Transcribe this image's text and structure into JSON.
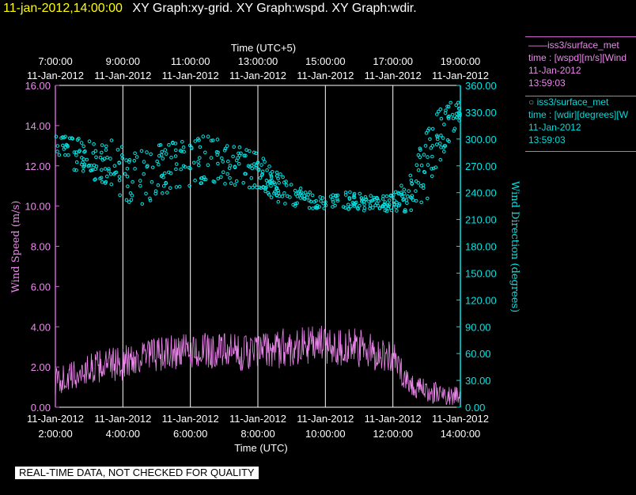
{
  "header": {
    "timestamp": "11-jan-2012,14:00:00",
    "graphs": "XY Graph:xy-grid.  XY Graph:wspd.  XY Graph:wdir."
  },
  "legend": [
    {
      "marker": "——",
      "name": "iss3/surface_met",
      "field": "time : [wspd][m/s][Wind",
      "date": "11-Jan-2012",
      "time": "13:59:03"
    },
    {
      "marker": "○",
      "name": "iss3/surface_met",
      "field": "time : [wdir][degrees][W",
      "date": "11-Jan-2012",
      "time": "13:59:03"
    }
  ],
  "quality_banner": "REAL-TIME DATA, NOT CHECKED FOR QUALITY",
  "colors": {
    "wspd": "#ee88ee",
    "wdir": "#00e5e5",
    "axis_left": "#cc66cc",
    "grid": "#ffffff",
    "header_ts": "#ffff00"
  },
  "chart_data": {
    "type": "line",
    "title": "",
    "top_axis_label": "Time (UTC+5)",
    "bottom_axis_label": "Time (UTC)",
    "ylabel": "Wind Speed (m/s)",
    "y2label": "Wind Direction (degrees)",
    "xlim_hours_utc": [
      2.0,
      14.0
    ],
    "ylim": [
      0,
      16
    ],
    "y2lim": [
      0,
      360
    ],
    "bottom_ticks": [
      {
        "date": "11-Jan-2012",
        "time": "2:00:00",
        "hour": 2
      },
      {
        "date": "11-Jan-2012",
        "time": "4:00:00",
        "hour": 4
      },
      {
        "date": "11-Jan-2012",
        "time": "6:00:00",
        "hour": 6
      },
      {
        "date": "11-Jan-2012",
        "time": "8:00:00",
        "hour": 8
      },
      {
        "date": "11-Jan-2012",
        "time": "10:00:00",
        "hour": 10
      },
      {
        "date": "11-Jan-2012",
        "time": "12:00:00",
        "hour": 12
      },
      {
        "date": "11-Jan-2012",
        "time": "14:00:00",
        "hour": 14
      }
    ],
    "top_ticks": [
      {
        "time": "7:00:00",
        "date": "11-Jan-2012",
        "hour": 2
      },
      {
        "time": "9:00:00",
        "date": "11-Jan-2012",
        "hour": 4
      },
      {
        "time": "11:00:00",
        "date": "11-Jan-2012",
        "hour": 6
      },
      {
        "time": "13:00:00",
        "date": "11-Jan-2012",
        "hour": 8
      },
      {
        "time": "15:00:00",
        "date": "11-Jan-2012",
        "hour": 10
      },
      {
        "time": "17:00:00",
        "date": "11-Jan-2012",
        "hour": 12
      },
      {
        "time": "19:00:00",
        "date": "11-Jan-2012",
        "hour": 14
      }
    ],
    "y_ticks": [
      "0.00",
      "2.00",
      "4.00",
      "6.00",
      "8.00",
      "10.00",
      "12.00",
      "14.00",
      "16.00"
    ],
    "y_tick_values": [
      0,
      2,
      4,
      6,
      8,
      10,
      12,
      14,
      16
    ],
    "y2_ticks": [
      "0.00",
      "30.00",
      "60.00",
      "90.00",
      "120.00",
      "150.00",
      "180.00",
      "210.00",
      "240.00",
      "270.00",
      "300.00",
      "330.00",
      "360.00"
    ],
    "y2_tick_values": [
      0,
      30,
      60,
      90,
      120,
      150,
      180,
      210,
      240,
      270,
      300,
      330,
      360
    ],
    "series": [
      {
        "name": "wspd (m/s)",
        "style": "line",
        "axis": "left",
        "x": [
          2.0,
          2.5,
          3.0,
          3.5,
          4.0,
          4.5,
          5.0,
          5.5,
          6.0,
          6.5,
          7.0,
          7.5,
          8.0,
          8.5,
          9.0,
          9.5,
          10.0,
          10.5,
          11.0,
          11.5,
          12.0,
          12.25,
          12.5,
          12.75,
          13.0,
          13.25,
          13.5,
          13.75,
          14.0
        ],
        "values": [
          1.3,
          1.5,
          1.9,
          2.1,
          2.2,
          2.5,
          2.6,
          2.7,
          2.8,
          2.8,
          2.8,
          2.7,
          2.8,
          2.9,
          3.0,
          3.1,
          3.1,
          3.0,
          2.9,
          2.7,
          2.5,
          1.8,
          1.2,
          0.9,
          0.8,
          0.7,
          0.6,
          0.6,
          0.6
        ],
        "spread": [
          0.7,
          0.8,
          0.8,
          0.8,
          0.9,
          0.9,
          0.9,
          0.9,
          0.9,
          0.9,
          0.9,
          0.9,
          0.9,
          1.0,
          1.0,
          1.0,
          1.0,
          1.0,
          1.0,
          0.9,
          0.8,
          0.7,
          0.6,
          0.6,
          0.6,
          0.6,
          0.5,
          0.5,
          0.5
        ]
      },
      {
        "name": "wdir (degrees)",
        "style": "scatter",
        "axis": "right",
        "x": [
          2.0,
          2.5,
          3.0,
          3.5,
          4.0,
          4.5,
          5.0,
          5.5,
          6.0,
          6.5,
          7.0,
          7.5,
          8.0,
          8.5,
          9.0,
          9.5,
          10.0,
          10.5,
          11.0,
          11.5,
          12.0,
          12.5,
          12.75,
          13.0,
          13.25,
          13.5,
          13.75,
          14.0
        ],
        "values": [
          290,
          285,
          280,
          275,
          265,
          255,
          265,
          270,
          275,
          280,
          275,
          270,
          262,
          248,
          238,
          232,
          230,
          232,
          230,
          228,
          228,
          238,
          255,
          270,
          290,
          310,
          325,
          325
        ],
        "spread": [
          15,
          20,
          25,
          28,
          32,
          32,
          30,
          28,
          28,
          28,
          25,
          25,
          22,
          18,
          12,
          10,
          8,
          10,
          10,
          8,
          10,
          20,
          30,
          40,
          35,
          30,
          25,
          15
        ]
      }
    ]
  }
}
